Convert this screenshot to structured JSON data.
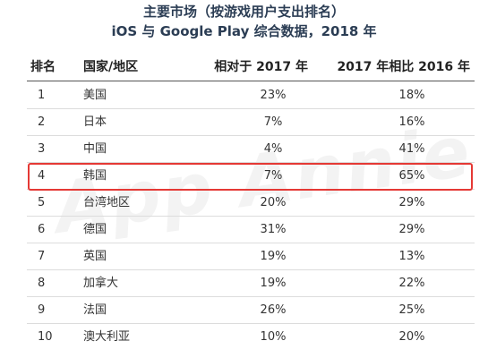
{
  "title": {
    "line1": "主要市场（按游戏用户支出排名）",
    "line2": "iOS 与 Google Play 综合数据，2018 年"
  },
  "watermark": "App Annie",
  "colors": {
    "title": "#2b3d54",
    "highlight_border": "#e53935",
    "header_line": "#555555",
    "row_separator": "#dcdcdc"
  },
  "chart_data": {
    "type": "table",
    "columns": [
      "排名",
      "国家/地区",
      "相对于 2017 年",
      "2017 年相比 2016 年"
    ],
    "rows": [
      {
        "rank": "1",
        "country": "美国",
        "vs_2017": "23%",
        "vs_2016": "18%"
      },
      {
        "rank": "2",
        "country": "日本",
        "vs_2017": "7%",
        "vs_2016": "16%"
      },
      {
        "rank": "3",
        "country": "中国",
        "vs_2017": "4%",
        "vs_2016": "41%"
      },
      {
        "rank": "4",
        "country": "韩国",
        "vs_2017": "7%",
        "vs_2016": "65%"
      },
      {
        "rank": "5",
        "country": "台湾地区",
        "vs_2017": "20%",
        "vs_2016": "29%"
      },
      {
        "rank": "6",
        "country": "德国",
        "vs_2017": "31%",
        "vs_2016": "29%"
      },
      {
        "rank": "7",
        "country": "英国",
        "vs_2017": "19%",
        "vs_2016": "13%"
      },
      {
        "rank": "8",
        "country": "加拿大",
        "vs_2017": "19%",
        "vs_2016": "22%"
      },
      {
        "rank": "9",
        "country": "法国",
        "vs_2017": "26%",
        "vs_2016": "25%"
      },
      {
        "rank": "10",
        "country": "澳大利亚",
        "vs_2017": "10%",
        "vs_2016": "20%"
      }
    ],
    "highlighted_rank": "4"
  }
}
